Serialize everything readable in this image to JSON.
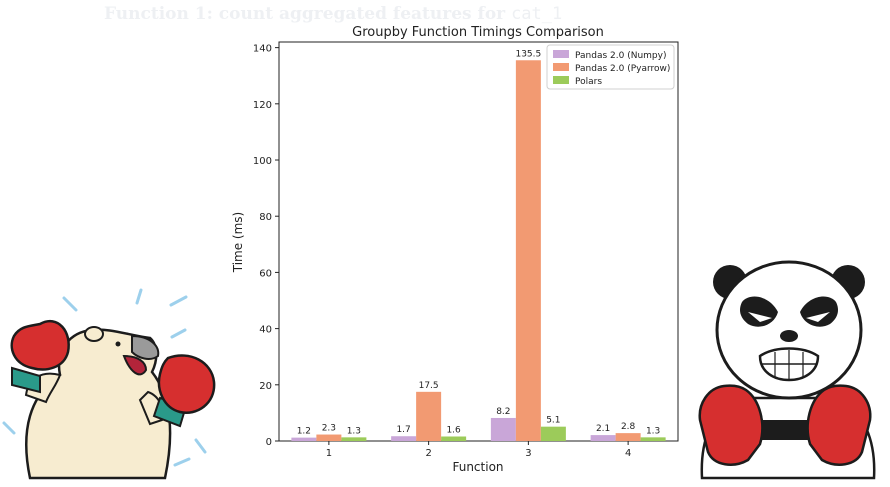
{
  "heading": {
    "prefix": "Function 1:",
    "text": "count aggregated features for",
    "code": "cat_1"
  },
  "colors": {
    "numpy": "#c9a6d8",
    "pyarrow": "#f29a72",
    "polars": "#9ccb5a"
  },
  "mascots": {
    "left": "polar-bear-boxer",
    "right": "panda-boxer"
  },
  "chart_data": {
    "type": "bar",
    "title": "Groupby Function Timings Comparison",
    "xlabel": "Function",
    "ylabel": "Time (ms)",
    "categories": [
      "1",
      "2",
      "3",
      "4"
    ],
    "ylim": [
      0,
      142
    ],
    "yticks": [
      0,
      20,
      40,
      60,
      80,
      100,
      120,
      140
    ],
    "grid": false,
    "legend_position": "top-right",
    "series": [
      {
        "name": "Pandas 2.0 (Numpy)",
        "values": [
          1.2,
          1.7,
          8.2,
          2.1
        ],
        "color": "#c9a6d8"
      },
      {
        "name": "Pandas 2.0 (Pyarrow)",
        "values": [
          2.3,
          17.5,
          135.5,
          2.8
        ],
        "color": "#f29a72"
      },
      {
        "name": "Polars",
        "values": [
          1.3,
          1.6,
          5.1,
          1.3
        ],
        "color": "#9ccb5a"
      }
    ]
  }
}
